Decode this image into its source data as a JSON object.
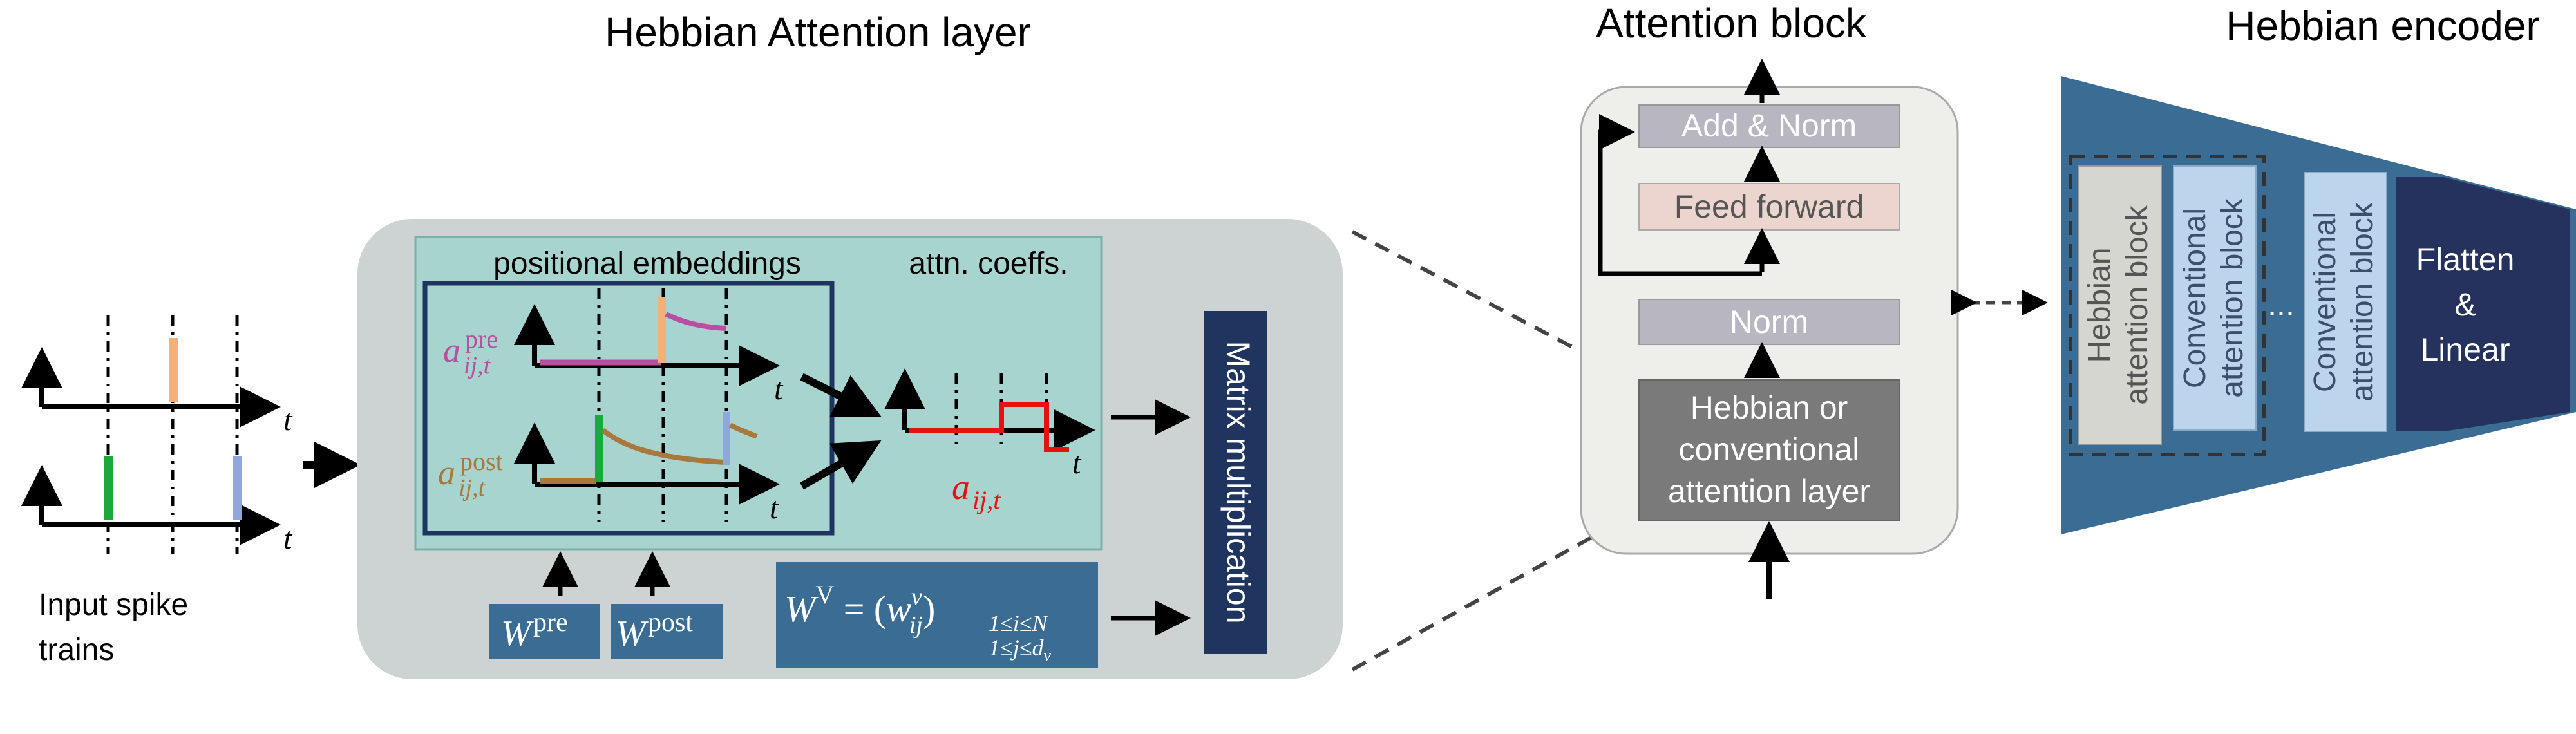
{
  "titles": {
    "hebbian_attention_layer": "Hebbian Attention layer",
    "attention_block": "Attention block",
    "hebbian_encoder": "Hebbian encoder"
  },
  "input": {
    "label_line1": "Input spike",
    "label_line2": "trains",
    "time_symbol": "t"
  },
  "layer": {
    "positional_embeddings": "positional embeddings",
    "attn_coeffs": "attn. coeffs.",
    "a_symbol": "a",
    "pre_sup": "pre",
    "post_sup": "post",
    "sub_ijt": "ij,t",
    "matrix_multiplication": "Matrix multiplication",
    "w_symbol": "W",
    "w_pre_sup": "pre",
    "w_post_sup": "post",
    "wv_eq": "W",
    "wv_sup": "V",
    "wv_equals": " = (",
    "wv_w": "w",
    "wv_w_sup": "v",
    "wv_w_sub": "ij",
    "wv_close": ")",
    "wv_range1": "1≤i≤N",
    "wv_range2": "1≤j≤d",
    "wv_range2_sub": "v",
    "time_symbol": "t"
  },
  "block": {
    "add_norm": "Add & Norm",
    "feed_forward": "Feed forward",
    "norm": "Norm",
    "attn_line1": "Hebbian or",
    "attn_line2": "conventional",
    "attn_line3": "attention layer"
  },
  "encoder": {
    "hebbian_block_line1": "Hebbian",
    "hebbian_block_line2": "attention block",
    "conv_block_line1": "Conventional",
    "conv_block_line2": "attention block",
    "ellipsis": "...",
    "flatten_line1": "Flatten",
    "flatten_line2": "&",
    "flatten_line3": "Linear"
  },
  "colors": {
    "pre_label": "#b84fa0",
    "post_label": "#a8783c",
    "attn_coeff": "#e81010",
    "spike_orange": "#f2b07a",
    "spike_green": "#1aaa3c",
    "spike_blue": "#8ea8dc",
    "layer_bg": "#cdd3d3",
    "teal_box": "#a8d4d0",
    "dark_navy": "#1f3560",
    "mid_blue": "#3a6c94",
    "block_bg": "#eeeeea",
    "encoder_blue": "#3a6c94"
  }
}
